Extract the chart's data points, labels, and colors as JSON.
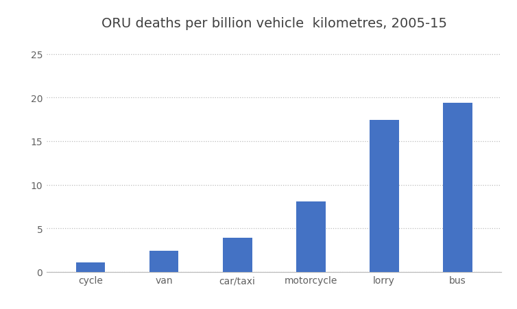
{
  "title": "ORU deaths per billion vehicle  kilometres, 2005-15",
  "categories": [
    "cycle",
    "van",
    "car/taxi",
    "motorcycle",
    "lorry",
    "bus"
  ],
  "values": [
    1.1,
    2.4,
    3.9,
    8.1,
    17.4,
    19.4
  ],
  "bar_color": "#4472C4",
  "ylim": [
    0,
    27
  ],
  "yticks": [
    0,
    5,
    10,
    15,
    20,
    25
  ],
  "grid_color": "#bbbbbb",
  "background_color": "#ffffff",
  "title_fontsize": 14,
  "tick_fontsize": 10,
  "title_color": "#404040",
  "tick_color": "#606060"
}
